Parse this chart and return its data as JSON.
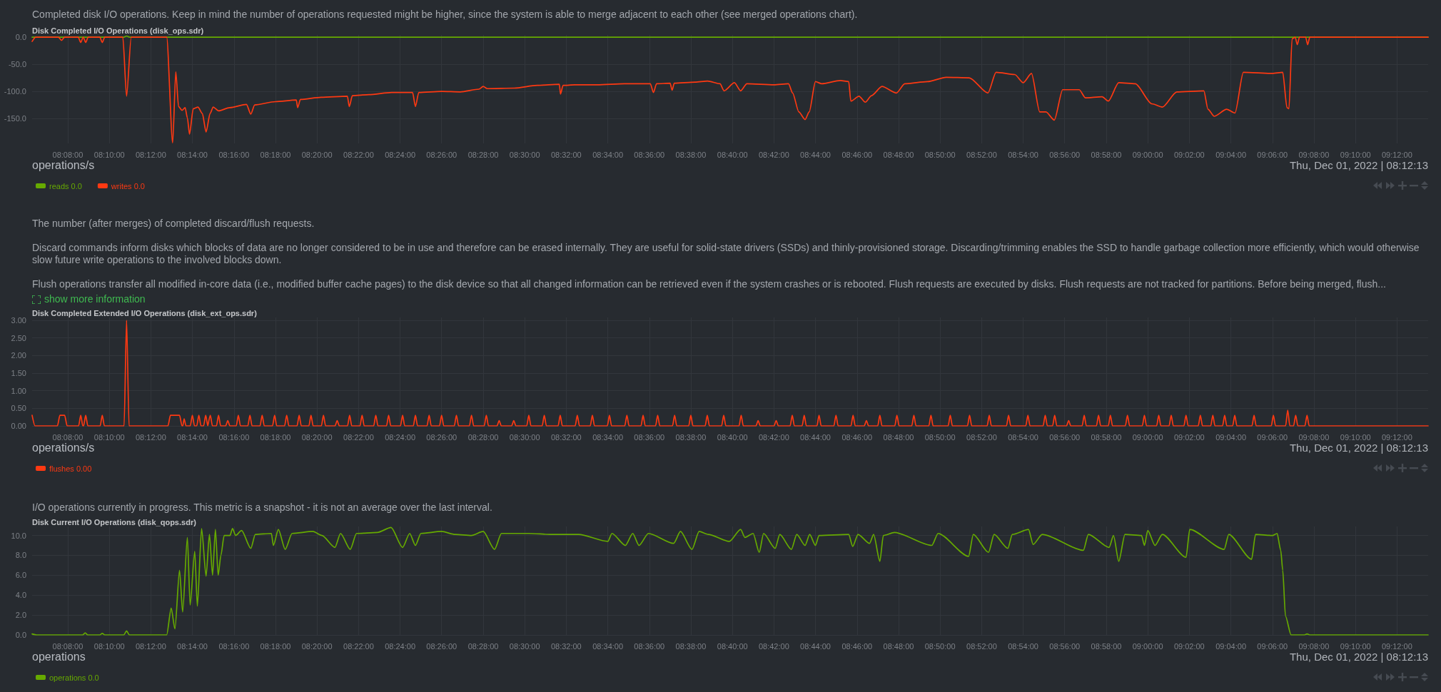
{
  "chart_data": [
    {
      "type": "line",
      "title": "Disk Completed I/O Operations (disk_ops.sdr)",
      "annotations": [
        "Completed disk I/O operations. Keep in mind the number of operations requested might be higher, since the system is able to merge adjacent to each other (see merged operations chart).",
        "operations/s",
        "Thu, Dec 01, 2022 | 08:12:13"
      ],
      "xlim": [
        8.1047,
        9.225
      ],
      "xticks": [
        {
          "value": 8.1333,
          "label": "08:08:00"
        },
        {
          "value": 8.1667,
          "label": "08:10:00"
        },
        {
          "value": 8.2,
          "label": "08:12:00"
        },
        {
          "value": 8.2333,
          "label": "08:14:00"
        },
        {
          "value": 8.2667,
          "label": "08:16:00"
        },
        {
          "value": 8.3,
          "label": "08:18:00"
        },
        {
          "value": 8.3333,
          "label": "08:20:00"
        },
        {
          "value": 8.3667,
          "label": "08:22:00"
        },
        {
          "value": 8.4,
          "label": "08:24:00"
        },
        {
          "value": 8.4333,
          "label": "08:26:00"
        },
        {
          "value": 8.4667,
          "label": "08:28:00"
        },
        {
          "value": 8.5,
          "label": "08:30:00"
        },
        {
          "value": 8.5333,
          "label": "08:32:00"
        },
        {
          "value": 8.5667,
          "label": "08:34:00"
        },
        {
          "value": 8.6,
          "label": "08:36:00"
        },
        {
          "value": 8.6333,
          "label": "08:38:00"
        },
        {
          "value": 8.6667,
          "label": "08:40:00"
        },
        {
          "value": 8.7,
          "label": "08:42:00"
        },
        {
          "value": 8.7333,
          "label": "08:44:00"
        },
        {
          "value": 8.7667,
          "label": "08:46:00"
        },
        {
          "value": 8.8,
          "label": "08:48:00"
        },
        {
          "value": 8.8333,
          "label": "08:50:00"
        },
        {
          "value": 8.8667,
          "label": "08:52:00"
        },
        {
          "value": 8.9,
          "label": "08:54:00"
        },
        {
          "value": 8.9333,
          "label": "08:56:00"
        },
        {
          "value": 8.9667,
          "label": "08:58:00"
        },
        {
          "value": 9.0,
          "label": "09:00:00"
        },
        {
          "value": 9.0333,
          "label": "09:02:00"
        },
        {
          "value": 9.0667,
          "label": "09:04:00"
        },
        {
          "value": 9.1,
          "label": "09:06:00"
        },
        {
          "value": 9.1333,
          "label": "09:08:00"
        },
        {
          "value": 9.1667,
          "label": "09:10:00"
        },
        {
          "value": 9.2,
          "label": "09:12:00"
        }
      ],
      "ylim": [
        -196,
        4
      ],
      "yticks": [
        {
          "value": 0,
          "label": "0.0"
        },
        {
          "value": -50,
          "label": "-50.0"
        },
        {
          "value": -100,
          "label": "-100.0"
        },
        {
          "value": -150,
          "label": "-150.0"
        }
      ],
      "grid": true,
      "legend": "bottom left",
      "marker": "none",
      "line_style": "solid",
      "series": [
        {
          "name": "reads 0.0",
          "color": "#66aa00",
          "x": [
            8.1047,
            8.1783,
            8.1805,
            8.1828,
            9.225
          ],
          "values": [
            0,
            0,
            2,
            0,
            0
          ]
        },
        {
          "name": "writes 0.0",
          "color": "#fe3912",
          "x": [
            8.1047,
            8.1075,
            8.1258,
            8.1283,
            8.1308,
            8.1417,
            8.1437,
            8.1457,
            8.1477,
            8.1497,
            8.159,
            8.161,
            8.163,
            8.1775,
            8.1805,
            8.1842,
            8.2127,
            8.2175,
            8.22,
            8.2222,
            8.225,
            8.2275,
            8.2293,
            8.231,
            8.234,
            8.2378,
            8.2413,
            8.2443,
            8.2475,
            8.25,
            8.2543,
            8.2633,
            8.2767,
            8.2802,
            8.2833,
            8.3,
            8.3167,
            8.3178,
            8.32,
            8.3367,
            8.3577,
            8.3592,
            8.3617,
            8.375,
            8.3933,
            8.41,
            8.4123,
            8.415,
            8.4333,
            8.4483,
            8.4633,
            8.4667,
            8.47,
            8.4917,
            8.51,
            8.5278,
            8.5287,
            8.5308,
            8.54,
            8.5583,
            8.58,
            8.6008,
            8.6033,
            8.6058,
            8.6167,
            8.6183,
            8.62,
            8.6367,
            8.6467,
            8.6567,
            8.66,
            8.6683,
            8.6733,
            8.6783,
            8.7,
            8.7117,
            8.715,
            8.72,
            8.725,
            8.7283,
            8.7333,
            8.7383,
            8.7533,
            8.76,
            8.7617,
            8.7683,
            8.7733,
            8.7783,
            8.7867,
            8.7983,
            8.805,
            8.8233,
            8.8383,
            8.8567,
            8.8717,
            8.8783,
            8.8933,
            8.9,
            8.9067,
            8.9133,
            8.9183,
            8.925,
            8.9317,
            8.945,
            8.95,
            8.9633,
            8.9683,
            8.9767,
            8.99,
            9.0033,
            9.0117,
            9.0233,
            9.045,
            9.0483,
            9.0533,
            9.0633,
            9.07,
            9.0767,
            9.1,
            9.1083,
            9.1117,
            9.1133,
            9.1158,
            9.1183,
            9.12,
            9.1217,
            9.1267,
            9.1283,
            9.13,
            9.225
          ],
          "values": [
            -8,
            0,
            0,
            -6,
            0,
            0,
            -10,
            0,
            -10,
            0,
            0,
            -10,
            0,
            0,
            -109,
            0,
            0,
            -195,
            -64,
            -128,
            -135,
            -130,
            -149,
            -179,
            -132,
            -129,
            -141,
            -175,
            -141,
            -129,
            -136,
            -130,
            -124,
            -142,
            -125,
            -119,
            -116,
            -130,
            -115,
            -111,
            -109,
            -128,
            -108,
            -106,
            -102,
            -102,
            -128,
            -102,
            -100,
            -101,
            -96,
            -91,
            -95,
            -94,
            -89,
            -87,
            -105,
            -89,
            -88,
            -88,
            -86,
            -86,
            -102,
            -86,
            -85,
            -98,
            -85,
            -83,
            -81,
            -86,
            -99,
            -84,
            -99,
            -86,
            -88,
            -86,
            -103,
            -138,
            -152,
            -138,
            -82,
            -86,
            -80,
            -82,
            -118,
            -109,
            -120,
            -108,
            -91,
            -103,
            -86,
            -82,
            -74,
            -75,
            -103,
            -65,
            -69,
            -84,
            -67,
            -138,
            -138,
            -153,
            -97,
            -97,
            -112,
            -110,
            -118,
            -84,
            -86,
            -123,
            -129,
            -101,
            -99,
            -133,
            -146,
            -133,
            -140,
            -65,
            -67,
            -65,
            -130,
            -132,
            -3,
            0,
            -14,
            0,
            0,
            -14,
            0,
            0
          ]
        }
      ]
    },
    {
      "type": "line",
      "title": "Disk Completed Extended I/O Operations (disk_ext_ops.sdr)",
      "annotations": [
        "The number (after merges) of completed discard/flush requests.",
        "Discard commands inform disks which blocks of data are no longer considered to be in use and therefore can be erased internally. They are useful for solid-state drivers (SSDs) and thinly-provisioned storage. Discarding/trimming enables the SSD to handle garbage collection more efficiently, which would otherwise slow future write operations to the involved blocks down.",
        "Flush operations transfer all modified in-core data (i.e., modified buffer cache pages) to the disk device so that all changed information can be retrieved even if the system crashes or is rebooted. Flush requests are executed by disks. Flush requests are not tracked for partitions. Before being merged, flush...",
        "show more information",
        "operations/s",
        "Thu, Dec 01, 2022 | 08:12:13"
      ],
      "xlim": [
        8.1047,
        9.225
      ],
      "xticks": [
        {
          "value": 8.1333,
          "label": "08:08:00"
        },
        {
          "value": 8.1667,
          "label": "08:10:00"
        },
        {
          "value": 8.2,
          "label": "08:12:00"
        },
        {
          "value": 8.2333,
          "label": "08:14:00"
        },
        {
          "value": 8.2667,
          "label": "08:16:00"
        },
        {
          "value": 8.3,
          "label": "08:18:00"
        },
        {
          "value": 8.3333,
          "label": "08:20:00"
        },
        {
          "value": 8.3667,
          "label": "08:22:00"
        },
        {
          "value": 8.4,
          "label": "08:24:00"
        },
        {
          "value": 8.4333,
          "label": "08:26:00"
        },
        {
          "value": 8.4667,
          "label": "08:28:00"
        },
        {
          "value": 8.5,
          "label": "08:30:00"
        },
        {
          "value": 8.5333,
          "label": "08:32:00"
        },
        {
          "value": 8.5667,
          "label": "08:34:00"
        },
        {
          "value": 8.6,
          "label": "08:36:00"
        },
        {
          "value": 8.6333,
          "label": "08:38:00"
        },
        {
          "value": 8.6667,
          "label": "08:40:00"
        },
        {
          "value": 8.7,
          "label": "08:42:00"
        },
        {
          "value": 8.7333,
          "label": "08:44:00"
        },
        {
          "value": 8.7667,
          "label": "08:46:00"
        },
        {
          "value": 8.8,
          "label": "08:48:00"
        },
        {
          "value": 8.8333,
          "label": "08:50:00"
        },
        {
          "value": 8.8667,
          "label": "08:52:00"
        },
        {
          "value": 8.9,
          "label": "08:54:00"
        },
        {
          "value": 8.9333,
          "label": "08:56:00"
        },
        {
          "value": 8.9667,
          "label": "08:58:00"
        },
        {
          "value": 9.0,
          "label": "09:00:00"
        },
        {
          "value": 9.0333,
          "label": "09:02:00"
        },
        {
          "value": 9.0667,
          "label": "09:04:00"
        },
        {
          "value": 9.1,
          "label": "09:06:00"
        },
        {
          "value": 9.1333,
          "label": "09:08:00"
        },
        {
          "value": 9.1667,
          "label": "09:10:00"
        },
        {
          "value": 9.2,
          "label": "09:12:00"
        }
      ],
      "ylim": [
        0,
        3.08
      ],
      "yticks": [
        {
          "value": 0,
          "label": "0.00"
        },
        {
          "value": 0.5,
          "label": "0.50"
        },
        {
          "value": 1,
          "label": "1.00"
        },
        {
          "value": 1.5,
          "label": "1.50"
        },
        {
          "value": 2,
          "label": "2.00"
        },
        {
          "value": 2.5,
          "label": "2.50"
        },
        {
          "value": 3,
          "label": "3.00"
        }
      ],
      "grid": true,
      "legend": "bottom left",
      "marker": "none",
      "line_style": "solid",
      "series": [
        {
          "name": "flushes 0.00",
          "color": "#fe3912",
          "x": [
            8.1047,
            8.107,
            8.125,
            8.127,
            8.1308,
            8.1328,
            8.142,
            8.1437,
            8.1454,
            8.146,
            8.1477,
            8.1494,
            8.1593,
            8.161,
            8.1627,
            8.1785,
            8.1805,
            8.1825,
            8.2137,
            8.2157,
            8.223,
            8.225,
            8.2256,
            8.2267,
            8.2282,
            8.2316,
            8.2333,
            8.235,
            8.2368,
            8.2385,
            8.2402,
            8.2423,
            8.244,
            8.2457,
            8.246,
            8.2477,
            8.2494,
            8.2526,
            8.2543,
            8.256,
            8.26,
            8.2617,
            8.2634,
            8.2685,
            8.2702,
            8.2719,
            8.2778,
            8.2795,
            8.2812,
            8.2876,
            8.2893,
            8.291,
            8.2976,
            8.2993,
            8.301,
            8.3073,
            8.309,
            8.3107,
            8.3173,
            8.319,
            8.3207,
            8.3268,
            8.3285,
            8.3302,
            8.3368,
            8.3385,
            8.3402,
            8.3478,
            8.3495,
            8.3512,
            8.3578,
            8.3595,
            8.3612,
            8.3678,
            8.3695,
            8.3712,
            8.3788,
            8.3805,
            8.3822,
            8.3891,
            8.3908,
            8.3925,
            8.4003,
            8.402,
            8.4037,
            8.4106,
            8.4123,
            8.414,
            8.4216,
            8.4233,
            8.425,
            8.4316,
            8.4333,
            8.435,
            8.4435,
            8.4452,
            8.4469,
            8.4556,
            8.4573,
            8.459,
            8.4675,
            8.4692,
            8.4709,
            8.4778,
            8.4795,
            8.4812,
            8.4895,
            8.4912,
            8.4929,
            8.5016,
            8.5033,
            8.505,
            8.514,
            8.5157,
            8.5174,
            8.5268,
            8.5285,
            8.5302,
            8.5405,
            8.5422,
            8.5439,
            8.5526,
            8.5543,
            8.556,
            8.5663,
            8.568,
            8.5697,
            8.5803,
            8.582,
            8.5837,
            8.5933,
            8.595,
            8.5967,
            8.605,
            8.6067,
            8.6084,
            8.6186,
            8.6203,
            8.622,
            8.6316,
            8.6333,
            8.635,
            8.6448,
            8.6465,
            8.6482,
            8.658,
            8.6597,
            8.6614,
            8.672,
            8.6737,
            8.6754,
            8.6856,
            8.6873,
            8.689,
            8.7001,
            8.7018,
            8.7035,
            8.713,
            8.7147,
            8.7164,
            8.7226,
            8.7243,
            8.726,
            8.7345,
            8.7362,
            8.7379,
            8.7481,
            8.7498,
            8.7515,
            8.7618,
            8.7635,
            8.7652,
            8.7725,
            8.7742,
            8.7759,
            8.7833,
            8.785,
            8.7867,
            8.797,
            8.7987,
            8.8004,
            8.8106,
            8.8123,
            8.814,
            8.8243,
            8.826,
            8.8277,
            8.8398,
            8.8415,
            8.8432,
            8.8553,
            8.857,
            8.8587,
            8.8711,
            8.8728,
            8.8745,
            8.8866,
            8.8883,
            8.89,
            8.9021,
            8.9038,
            8.9055,
            8.916,
            8.9177,
            8.9194,
            8.9236,
            8.9253,
            8.927,
            8.9348,
            8.9365,
            8.9382,
            8.9473,
            8.949,
            8.9507,
            8.9588,
            8.9605,
            8.9622,
            8.9683,
            8.97,
            8.9717,
            8.982,
            8.9837,
            8.9854,
            8.9956,
            8.9973,
            8.999,
            9.0071,
            9.0088,
            9.0105,
            9.0171,
            9.0188,
            9.0205,
            9.029,
            9.0307,
            9.0324,
            9.0405,
            9.0422,
            9.0439,
            9.0505,
            9.0522,
            9.0539,
            9.06,
            9.0617,
            9.0634,
            9.0681,
            9.0698,
            9.0715,
            9.0836,
            9.0853,
            9.087,
            9.0991,
            9.1008,
            9.1025,
            9.1106,
            9.1123,
            9.114,
            9.117,
            9.1187,
            9.1204,
            9.1261,
            9.1278,
            9.1295,
            9.225
          ],
          "values": [
            0.3,
            0,
            0,
            0.3,
            0.3,
            0,
            0,
            0.3,
            0,
            0,
            0.3,
            0,
            0,
            0.3,
            0,
            0,
            3,
            0,
            0,
            0.3,
            0.3,
            0,
            0,
            0.2,
            0,
            0,
            0.3,
            0,
            0,
            0.3,
            0,
            0,
            0.3,
            0,
            0,
            0.3,
            0,
            0,
            0.3,
            0,
            0,
            0.15,
            0,
            0,
            0.3,
            0,
            0,
            0.3,
            0,
            0,
            0.3,
            0,
            0,
            0.3,
            0,
            0,
            0.3,
            0,
            0,
            0.3,
            0,
            0,
            0.3,
            0,
            0,
            0.3,
            0,
            0,
            0.15,
            0,
            0,
            0.3,
            0,
            0,
            0.3,
            0,
            0,
            0.3,
            0,
            0,
            0.3,
            0,
            0,
            0.3,
            0,
            0,
            0.3,
            0,
            0,
            0.3,
            0,
            0,
            0.3,
            0,
            0,
            0.3,
            0,
            0,
            0.3,
            0,
            0,
            0.3,
            0,
            0,
            0.15,
            0,
            0,
            0.15,
            0,
            0,
            0.3,
            0,
            0,
            0.3,
            0,
            0,
            0.3,
            0,
            0,
            0.3,
            0,
            0,
            0.3,
            0,
            0,
            0.3,
            0,
            0,
            0.3,
            0,
            0,
            0.3,
            0,
            0,
            0.3,
            0,
            0,
            0.3,
            0,
            0,
            0.3,
            0,
            0,
            0.3,
            0,
            0,
            0.3,
            0,
            0,
            0.3,
            0,
            0,
            0.15,
            0,
            0,
            0.15,
            0,
            0,
            0.3,
            0,
            0,
            0.3,
            0,
            0,
            0.3,
            0,
            0,
            0.3,
            0,
            0,
            0.3,
            0,
            0,
            0.15,
            0,
            0,
            0.3,
            0,
            0,
            0.3,
            0,
            0,
            0.3,
            0,
            0,
            0.3,
            0,
            0,
            0.3,
            0,
            0,
            0.3,
            0,
            0,
            0.3,
            0,
            0,
            0.3,
            0,
            0,
            0.3,
            0,
            0,
            0.3,
            0,
            0,
            0.3,
            0,
            0,
            0.15,
            0,
            0,
            0.3,
            0,
            0,
            0.3,
            0,
            0,
            0.3,
            0,
            0,
            0.3,
            0,
            0,
            0.3,
            0,
            0,
            0.3,
            0,
            0,
            0.3,
            0,
            0,
            0.3,
            0,
            0,
            0.3,
            0,
            0,
            0.3,
            0,
            0,
            0.3,
            0,
            0,
            0.3,
            0,
            0,
            0.3,
            0,
            0,
            0.3,
            0,
            0,
            0.45,
            0,
            0,
            0.3,
            0,
            0,
            0.3,
            0,
            0
          ]
        }
      ]
    },
    {
      "type": "line",
      "title": "Disk Current I/O Operations (disk_qops.sdr)",
      "annotations": [
        "I/O operations currently in progress. This metric is a snapshot - it is not an average over the last interval.",
        "operations",
        "Thu, Dec 01, 2022 | 08:12:13"
      ],
      "xlim": [
        8.1047,
        9.225
      ],
      "xticks": [
        {
          "value": 8.1333,
          "label": "08:08:00"
        },
        {
          "value": 8.1667,
          "label": "08:10:00"
        },
        {
          "value": 8.2,
          "label": "08:12:00"
        },
        {
          "value": 8.2333,
          "label": "08:14:00"
        },
        {
          "value": 8.2667,
          "label": "08:16:00"
        },
        {
          "value": 8.3,
          "label": "08:18:00"
        },
        {
          "value": 8.3333,
          "label": "08:20:00"
        },
        {
          "value": 8.3667,
          "label": "08:22:00"
        },
        {
          "value": 8.4,
          "label": "08:24:00"
        },
        {
          "value": 8.4333,
          "label": "08:26:00"
        },
        {
          "value": 8.4667,
          "label": "08:28:00"
        },
        {
          "value": 8.5,
          "label": "08:30:00"
        },
        {
          "value": 8.5333,
          "label": "08:32:00"
        },
        {
          "value": 8.5667,
          "label": "08:34:00"
        },
        {
          "value": 8.6,
          "label": "08:36:00"
        },
        {
          "value": 8.6333,
          "label": "08:38:00"
        },
        {
          "value": 8.6667,
          "label": "08:40:00"
        },
        {
          "value": 8.7,
          "label": "08:42:00"
        },
        {
          "value": 8.7333,
          "label": "08:44:00"
        },
        {
          "value": 8.7667,
          "label": "08:46:00"
        },
        {
          "value": 8.8,
          "label": "08:48:00"
        },
        {
          "value": 8.8333,
          "label": "08:50:00"
        },
        {
          "value": 8.8667,
          "label": "08:52:00"
        },
        {
          "value": 8.9,
          "label": "08:54:00"
        },
        {
          "value": 8.9333,
          "label": "08:56:00"
        },
        {
          "value": 8.9667,
          "label": "08:58:00"
        },
        {
          "value": 9.0,
          "label": "09:00:00"
        },
        {
          "value": 9.0333,
          "label": "09:02:00"
        },
        {
          "value": 9.0667,
          "label": "09:04:00"
        },
        {
          "value": 9.1,
          "label": "09:06:00"
        },
        {
          "value": 9.1333,
          "label": "09:08:00"
        },
        {
          "value": 9.1667,
          "label": "09:10:00"
        },
        {
          "value": 9.2,
          "label": "09:12:00"
        }
      ],
      "ylim": [
        0,
        10.9
      ],
      "yticks": [
        {
          "value": 0,
          "label": "0.0"
        },
        {
          "value": 2,
          "label": "2.0"
        },
        {
          "value": 4,
          "label": "4.0"
        },
        {
          "value": 6,
          "label": "6.0"
        },
        {
          "value": 8,
          "label": "8.0"
        },
        {
          "value": 10,
          "label": "10.0"
        }
      ],
      "grid": true,
      "legend": "bottom left",
      "marker": "none",
      "line_style": "solid",
      "series": [
        {
          "name": "operations 0.0",
          "color": "#66aa00",
          "x": [
            8.1047,
            8.1083,
            8.1453,
            8.1473,
            8.1493,
            8.159,
            8.161,
            8.163,
            8.1783,
            8.1805,
            8.1827,
            8.2127,
            8.2163,
            8.2193,
            8.223,
            8.2255,
            8.2293,
            8.2315,
            8.2352,
            8.2373,
            8.2407,
            8.2443,
            8.247,
            8.2495,
            8.2518,
            8.254,
            8.2562,
            8.2588,
            8.2635,
            8.2655,
            8.268,
            8.2728,
            8.2802,
            8.2838,
            8.2967,
            8.2983,
            8.3023,
            8.3078,
            8.3133,
            8.33,
            8.3373,
            8.3477,
            8.3522,
            8.36,
            8.365,
            8.3817,
            8.3927,
            8.402,
            8.4077,
            8.4123,
            8.4167,
            8.4333,
            8.4443,
            8.4573,
            8.4667,
            8.4758,
            8.4813,
            8.5033,
            8.5217,
            8.5433,
            8.5667,
            8.57,
            8.5808,
            8.5867,
            8.5917,
            8.5993,
            8.6195,
            8.625,
            8.6342,
            8.64,
            8.6473,
            8.6642,
            8.6733,
            8.6767,
            8.6833,
            8.6882,
            8.6917,
            8.701,
            8.7047,
            8.714,
            8.7183,
            8.725,
            8.7287,
            8.7333,
            8.7362,
            8.76,
            8.7632,
            8.7675,
            8.7767,
            8.78,
            8.785,
            8.7878,
            8.7967,
            8.8267,
            8.8317,
            8.8562,
            8.86,
            8.8722,
            8.8767,
            8.8877,
            8.8913,
            8.9043,
            8.908,
            8.9153,
            8.9483,
            8.9523,
            8.969,
            8.9725,
            8.9767,
            8.9817,
            8.995,
            8.9973,
            9.0,
            9.0058,
            9.0117,
            9.0307,
            9.0337,
            9.0613,
            9.065,
            9.0833,
            9.0865,
            9.1,
            9.1038,
            9.1067,
            9.1083,
            9.1105,
            9.115,
            9.1258,
            9.1278,
            9.13,
            9.225
          ],
          "values": [
            0.1,
            0,
            0,
            0.2,
            0,
            0,
            0.15,
            0,
            0,
            0.4,
            0,
            0,
            2.7,
            0.6,
            6.5,
            2.3,
            9.8,
            3.0,
            8.4,
            2.9,
            10.7,
            5.9,
            10.1,
            6.0,
            10.6,
            6.0,
            8.0,
            10.0,
            10.0,
            10.7,
            10.0,
            10.5,
            8.7,
            10.1,
            10.2,
            9.0,
            10.6,
            8.6,
            10.2,
            10.4,
            10.0,
            8.8,
            10.2,
            8.6,
            10.2,
            10.3,
            10.8,
            8.8,
            10.2,
            9.0,
            10.2,
            10.4,
            10.1,
            10.0,
            10.4,
            8.6,
            10.2,
            10.2,
            10.1,
            10.1,
            9.4,
            10.2,
            9.0,
            10.2,
            9.0,
            10.2,
            9.2,
            10.4,
            8.6,
            10.4,
            10.1,
            9.4,
            10.6,
            9.8,
            10.2,
            8.3,
            10.2,
            8.7,
            10.1,
            8.6,
            10.1,
            9.0,
            10.1,
            9.0,
            10.0,
            10.1,
            8.9,
            10.1,
            9.2,
            10.1,
            7.4,
            10.0,
            10.3,
            9.0,
            10.2,
            7.9,
            10.1,
            8.3,
            10.1,
            8.7,
            10.1,
            10.6,
            9.1,
            10.1,
            8.5,
            10.1,
            8.8,
            10.0,
            7.4,
            10.1,
            10.0,
            9.0,
            10.5,
            9.0,
            10.1,
            7.8,
            10.6,
            8.6,
            10.1,
            7.6,
            10.1,
            10.0,
            10.2,
            8.5,
            6.5,
            1.9,
            0,
            0,
            0.1,
            0,
            0
          ]
        }
      ]
    }
  ]
}
